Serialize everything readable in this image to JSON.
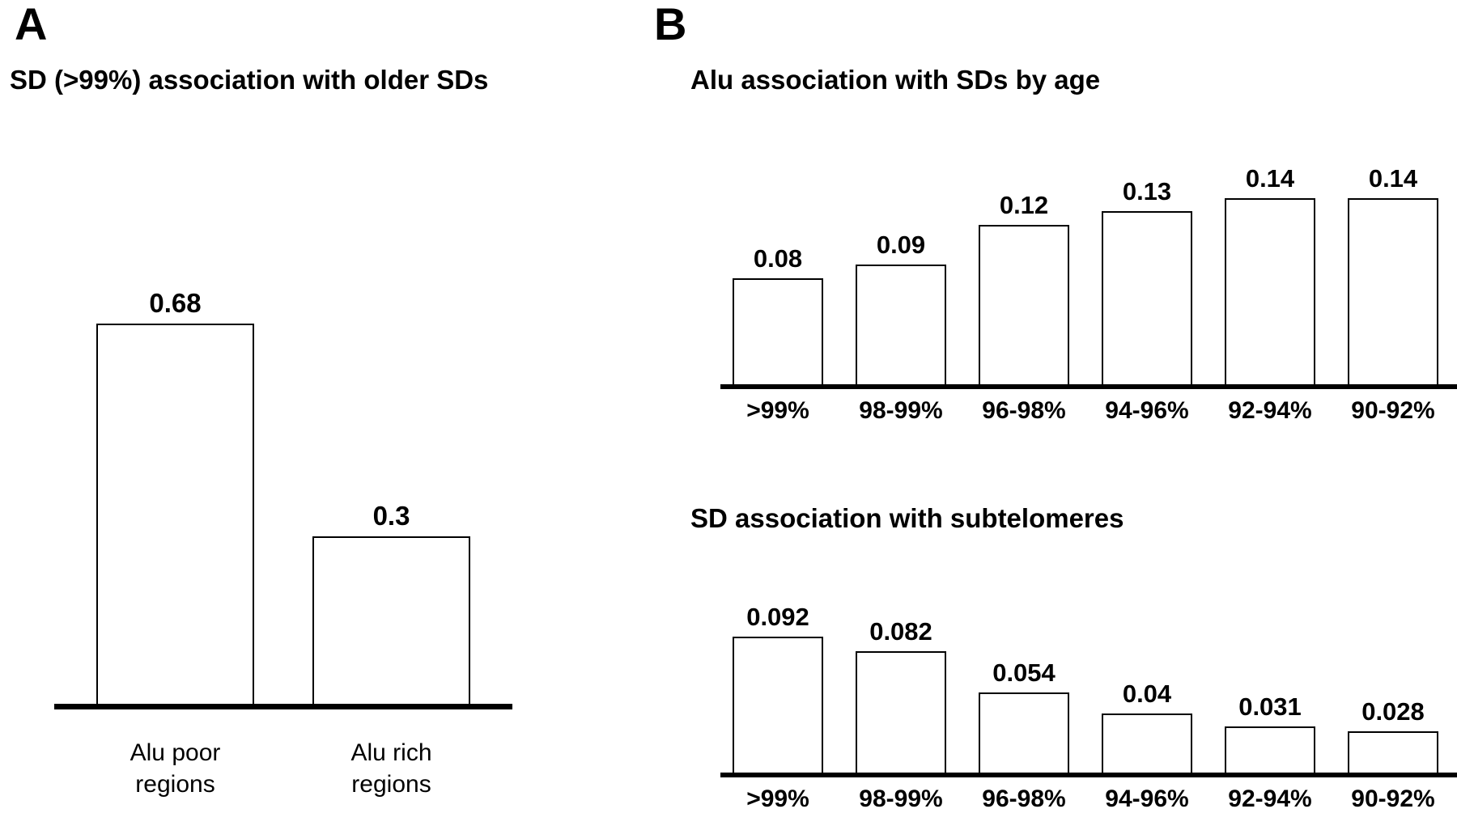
{
  "figure": {
    "panels": {
      "a_label": "A",
      "b_label": "B"
    }
  },
  "chart_data": [
    {
      "id": "sd-association-with-older-sds",
      "type": "bar",
      "title": "SD (>99%) association with older SDs",
      "categories": [
        "Alu poor\nregions",
        "Alu rich\nregions"
      ],
      "values": [
        0.68,
        0.3
      ],
      "value_labels": [
        "0.68",
        "0.3"
      ],
      "xlabel": "",
      "ylabel": "",
      "ylim": [
        0,
        0.75
      ],
      "grid": false,
      "legend": "none",
      "bar_fill": "#ffffff",
      "bar_border": "#000000"
    },
    {
      "id": "alu-association-with-sds-by-age",
      "type": "bar",
      "title": "Alu association with SDs by age",
      "categories": [
        ">99%",
        "98-99%",
        "96-98%",
        "94-96%",
        "92-94%",
        "90-92%"
      ],
      "values": [
        0.08,
        0.09,
        0.12,
        0.13,
        0.14,
        0.14
      ],
      "value_labels": [
        "0.08",
        "0.09",
        "0.12",
        "0.13",
        "0.14",
        "0.14"
      ],
      "xlabel": "",
      "ylabel": "",
      "ylim": [
        0,
        0.16
      ],
      "grid": false,
      "legend": "none",
      "bar_fill": "#ffffff",
      "bar_border": "#000000"
    },
    {
      "id": "sd-association-with-subtelomeres",
      "type": "bar",
      "title": "SD association with subtelomeres",
      "categories": [
        ">99%",
        "98-99%",
        "96-98%",
        "94-96%",
        "92-94%",
        "90-92%"
      ],
      "values": [
        0.092,
        0.082,
        0.054,
        0.04,
        0.031,
        0.028
      ],
      "value_labels": [
        "0.092",
        "0.082",
        "0.054",
        "0.04",
        "0.031",
        "0.028"
      ],
      "xlabel": "",
      "ylabel": "",
      "ylim": [
        0,
        0.1
      ],
      "grid": false,
      "legend": "none",
      "bar_fill": "#ffffff",
      "bar_border": "#000000"
    }
  ]
}
